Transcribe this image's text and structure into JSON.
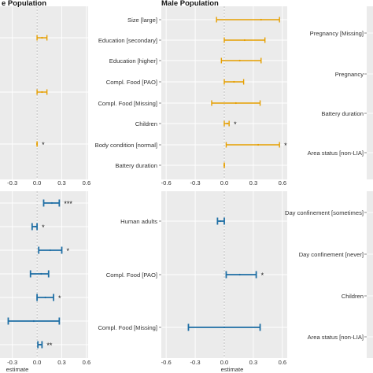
{
  "colors": {
    "orange": "#E69F00",
    "blue": "#1F6FA5",
    "panel": "#EBEBEB"
  },
  "chart_data": [
    {
      "type": "forest",
      "title": "e Population",
      "xlabel": "",
      "xlim": [
        -0.45,
        0.62
      ],
      "xticks": [
        "-0.3",
        "0.0",
        "0.3",
        "0.6"
      ],
      "color": "orange",
      "rows": [
        {
          "label": "",
          "estimate": 0.06,
          "lower": 0.0,
          "upper": 0.12,
          "sig": ""
        },
        {
          "label": "",
          "estimate": 0.06,
          "lower": 0.0,
          "upper": 0.12,
          "sig": ""
        },
        {
          "label": "",
          "estimate": 0.0,
          "lower": 0.0,
          "upper": 0.0,
          "sig": "*"
        }
      ]
    },
    {
      "type": "forest",
      "title": "Male Population",
      "xlabel": "",
      "xlim": [
        -0.65,
        0.65
      ],
      "xticks": [
        "-0.6",
        "-0.3",
        "0.0",
        "0.3",
        "0.6"
      ],
      "color": "orange",
      "rows": [
        {
          "label": "Size [large]",
          "estimate": 0.38,
          "lower": -0.08,
          "upper": 0.57,
          "sig": ""
        },
        {
          "label": "Education [secondary]",
          "estimate": 0.21,
          "lower": 0.0,
          "upper": 0.42,
          "sig": ""
        },
        {
          "label": "Education [higher]",
          "estimate": 0.16,
          "lower": -0.03,
          "upper": 0.38,
          "sig": ""
        },
        {
          "label": "Compl. Food [PAO]",
          "estimate": 0.1,
          "lower": 0.0,
          "upper": 0.2,
          "sig": ""
        },
        {
          "label": "Compl. Food [Missing]",
          "estimate": 0.12,
          "lower": -0.13,
          "upper": 0.37,
          "sig": ""
        },
        {
          "label": "Children",
          "estimate": 0.03,
          "lower": 0.0,
          "upper": 0.05,
          "sig": "*"
        },
        {
          "label": "Body condition [normal]",
          "estimate": 0.35,
          "lower": 0.02,
          "upper": 0.57,
          "sig": "*"
        },
        {
          "label": "Battery duration",
          "estimate": 0.0,
          "lower": 0.0,
          "upper": 0.0,
          "sig": ""
        }
      ]
    },
    {
      "type": "forest",
      "title": "",
      "xlabel": "",
      "xlim": [
        0,
        1
      ],
      "xticks": [],
      "color": "orange",
      "rows": [
        {
          "label": "Pregnancy [Missing]"
        },
        {
          "label": "Pregnancy"
        },
        {
          "label": "Battery duration"
        },
        {
          "label": "Area status [non-LIA]"
        }
      ]
    },
    {
      "type": "forest",
      "title": "",
      "xlabel": "estimate",
      "xlim": [
        -0.45,
        0.62
      ],
      "xticks": [
        "-0.3",
        "0.0",
        "0.3",
        "0.6"
      ],
      "color": "blue",
      "rows": [
        {
          "label": "",
          "estimate": 0.18,
          "lower": 0.08,
          "upper": 0.27,
          "sig": "***"
        },
        {
          "label": "",
          "estimate": -0.02,
          "lower": -0.06,
          "upper": 0.0,
          "sig": "*"
        },
        {
          "label": "",
          "estimate": 0.16,
          "lower": 0.02,
          "upper": 0.3,
          "sig": "*"
        },
        {
          "label": "",
          "estimate": 0.05,
          "lower": -0.08,
          "upper": 0.14,
          "sig": ""
        },
        {
          "label": "",
          "estimate": 0.1,
          "lower": 0.0,
          "upper": 0.2,
          "sig": "*"
        },
        {
          "label": "",
          "estimate": -0.04,
          "lower": -0.35,
          "upper": 0.27,
          "sig": ""
        },
        {
          "label": "",
          "estimate": 0.04,
          "lower": 0.01,
          "upper": 0.06,
          "sig": "**"
        }
      ]
    },
    {
      "type": "forest",
      "title": "",
      "xlabel": "estimate",
      "xlim": [
        -0.65,
        0.65
      ],
      "xticks": [
        "-0.6",
        "-0.3",
        "0.0",
        "0.3",
        "0.6"
      ],
      "color": "blue",
      "rows": [
        {
          "label": "Human adults",
          "estimate": -0.04,
          "lower": -0.07,
          "upper": 0.0,
          "sig": ""
        },
        {
          "label": "Compl. Food [PAO]",
          "estimate": 0.16,
          "lower": 0.02,
          "upper": 0.33,
          "sig": "*"
        },
        {
          "label": "Compl. Food [Missing]",
          "estimate": 0.0,
          "lower": -0.37,
          "upper": 0.37,
          "sig": ""
        }
      ]
    },
    {
      "type": "forest",
      "title": "",
      "xlabel": "",
      "xlim": [
        0,
        1
      ],
      "xticks": [],
      "color": "blue",
      "rows": [
        {
          "label": "Day confinement [sometimes]"
        },
        {
          "label": "Day confinement [never]"
        },
        {
          "label": "Children"
        },
        {
          "label": "Area status [non-LIA]"
        }
      ]
    }
  ]
}
